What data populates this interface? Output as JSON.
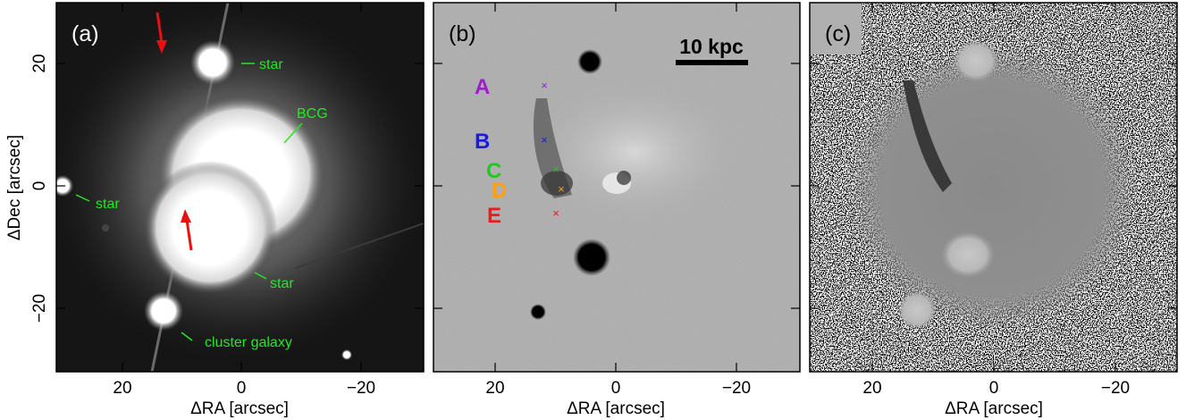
{
  "figure": {
    "panels": [
      {
        "label": "(a)",
        "x_ticks": [
          "20",
          "0",
          "−20"
        ],
        "y_ticks": [
          "20",
          "0",
          "−20"
        ],
        "xlabel": "ΔRA [arcsec]",
        "ylabel": "ΔDec [arcsec]",
        "annotations": [
          "star",
          "BCG",
          "star",
          "star",
          "cluster galaxy"
        ]
      },
      {
        "label": "(b)",
        "x_ticks": [
          "20",
          "0",
          "−20"
        ],
        "xlabel": "ΔRA [arcsec]",
        "scale_bar": "10 kpc",
        "markers": [
          {
            "letter": "A",
            "color": "#9a20c8"
          },
          {
            "letter": "B",
            "color": "#1a1ae6"
          },
          {
            "letter": "C",
            "color": "#22c822"
          },
          {
            "letter": "D",
            "color": "#ffa010"
          },
          {
            "letter": "E",
            "color": "#f01818"
          }
        ]
      },
      {
        "label": "(c)",
        "x_ticks": [
          "20",
          "0",
          "−20"
        ],
        "xlabel": "ΔRA [arcsec]"
      }
    ]
  },
  "colors": {
    "annotation": "#22e822",
    "arrow": "#e81010"
  }
}
